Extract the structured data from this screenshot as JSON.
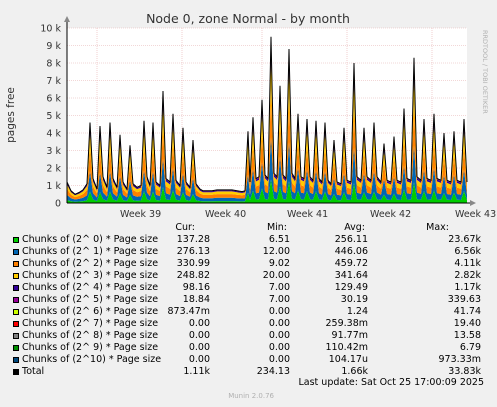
{
  "chart_data": {
    "type": "area",
    "title": "Node 0, zone Normal - by month",
    "ylabel": "pages free",
    "ylim": [
      0,
      10000
    ],
    "yticks": [
      {
        "v": 0,
        "label": "0"
      },
      {
        "v": 1000,
        "label": "1 k"
      },
      {
        "v": 2000,
        "label": "2 k"
      },
      {
        "v": 3000,
        "label": "3 k"
      },
      {
        "v": 4000,
        "label": "4 k"
      },
      {
        "v": 5000,
        "label": "5 k"
      },
      {
        "v": 6000,
        "label": "6 k"
      },
      {
        "v": 7000,
        "label": "7 k"
      },
      {
        "v": 8000,
        "label": "8 k"
      },
      {
        "v": 9000,
        "label": "9 k"
      },
      {
        "v": 10000,
        "label": "10 k"
      }
    ],
    "xticks": [
      "Week 39",
      "Week 40",
      "Week 41",
      "Week 42",
      "Week 43"
    ],
    "watermark": "RRDTOOL / TOBI OETIKER",
    "grid": true,
    "columns": [
      "Cur:",
      "Min:",
      "Avg:",
      "Max:"
    ],
    "series": [
      {
        "name": "Chunks of (2^ 0) * Page size",
        "color": "#00cc00",
        "cur": "137.28",
        "min": "6.51",
        "avg": "256.11",
        "max": "23.67k"
      },
      {
        "name": "Chunks of (2^ 1) * Page size",
        "color": "#0066b3",
        "cur": "276.13",
        "min": "12.00",
        "avg": "446.06",
        "max": "6.56k"
      },
      {
        "name": "Chunks of (2^ 2) * Page size",
        "color": "#ff8000",
        "cur": "330.99",
        "min": "9.02",
        "avg": "459.72",
        "max": "4.11k"
      },
      {
        "name": "Chunks of (2^ 3) * Page size",
        "color": "#ffcc00",
        "cur": "248.82",
        "min": "20.00",
        "avg": "341.64",
        "max": "2.82k"
      },
      {
        "name": "Chunks of (2^ 4) * Page size",
        "color": "#330099",
        "cur": "98.16",
        "min": "7.00",
        "avg": "129.49",
        "max": "1.17k"
      },
      {
        "name": "Chunks of (2^ 5) * Page size",
        "color": "#990099",
        "cur": "18.84",
        "min": "7.00",
        "avg": "30.19",
        "max": "339.63"
      },
      {
        "name": "Chunks of (2^ 6) * Page size",
        "color": "#ccff00",
        "cur": "873.47m",
        "min": "0.00",
        "avg": "1.24",
        "max": "41.74"
      },
      {
        "name": "Chunks of (2^ 7) * Page size",
        "color": "#ff0000",
        "cur": "0.00",
        "min": "0.00",
        "avg": "259.38m",
        "max": "19.40"
      },
      {
        "name": "Chunks of (2^ 8) * Page size",
        "color": "#808080",
        "cur": "0.00",
        "min": "0.00",
        "avg": "91.77m",
        "max": "13.58"
      },
      {
        "name": "Chunks of (2^ 9) * Page size",
        "color": "#008f00",
        "cur": "0.00",
        "min": "0.00",
        "avg": "110.42m",
        "max": "6.79"
      },
      {
        "name": "Chunks of (2^10) * Page size",
        "color": "#00487d",
        "cur": "0.00",
        "min": "0.00",
        "avg": "104.17u",
        "max": "973.33m"
      },
      {
        "name": "Total",
        "color": "#000000",
        "cur": "1.11k",
        "min": "234.13",
        "avg": "1.66k",
        "max": "33.83k"
      }
    ],
    "total_points": [
      [
        0,
        1200
      ],
      [
        0.4,
        700
      ],
      [
        0.8,
        500
      ],
      [
        1.2,
        600
      ],
      [
        1.6,
        750
      ],
      [
        2.0,
        1100
      ],
      [
        2.3,
        4600
      ],
      [
        2.6,
        1400
      ],
      [
        3.0,
        800
      ],
      [
        3.3,
        4400
      ],
      [
        3.6,
        1500
      ],
      [
        4.0,
        900
      ],
      [
        4.3,
        4600
      ],
      [
        4.6,
        1400
      ],
      [
        5.0,
        900
      ],
      [
        5.3,
        3900
      ],
      [
        5.6,
        1200
      ],
      [
        6.0,
        800
      ],
      [
        6.3,
        3300
      ],
      [
        6.6,
        1100
      ],
      [
        7.0,
        900
      ],
      [
        7.4,
        1000
      ],
      [
        7.7,
        4700
      ],
      [
        8.0,
        1500
      ],
      [
        8.3,
        1000
      ],
      [
        8.6,
        4600
      ],
      [
        8.9,
        1200
      ],
      [
        9.3,
        1000
      ],
      [
        9.6,
        6400
      ],
      [
        9.9,
        1400
      ],
      [
        10.3,
        1200
      ],
      [
        10.6,
        5100
      ],
      [
        10.9,
        1300
      ],
      [
        11.3,
        1000
      ],
      [
        11.6,
        4300
      ],
      [
        11.9,
        1200
      ],
      [
        12.3,
        900
      ],
      [
        12.6,
        3600
      ],
      [
        12.9,
        1100
      ],
      [
        13.3,
        800
      ],
      [
        13.6,
        700
      ],
      [
        14.0,
        700
      ],
      [
        14.5,
        700
      ],
      [
        15.0,
        750
      ],
      [
        15.5,
        750
      ],
      [
        16.0,
        750
      ],
      [
        16.5,
        750
      ],
      [
        17.0,
        700
      ],
      [
        17.5,
        650
      ],
      [
        17.8,
        700
      ],
      [
        18.1,
        4100
      ],
      [
        18.3,
        1200
      ],
      [
        18.6,
        4900
      ],
      [
        18.9,
        1400
      ],
      [
        19.2,
        1500
      ],
      [
        19.5,
        5900
      ],
      [
        19.8,
        1600
      ],
      [
        20.1,
        1400
      ],
      [
        20.4,
        9500
      ],
      [
        20.7,
        1700
      ],
      [
        21.0,
        1500
      ],
      [
        21.3,
        6700
      ],
      [
        21.6,
        1600
      ],
      [
        21.9,
        1400
      ],
      [
        22.2,
        8800
      ],
      [
        22.5,
        1700
      ],
      [
        22.8,
        1400
      ],
      [
        23.1,
        5100
      ],
      [
        23.4,
        1500
      ],
      [
        23.7,
        1400
      ],
      [
        24.0,
        4800
      ],
      [
        24.3,
        1500
      ],
      [
        24.6,
        1300
      ],
      [
        24.9,
        4700
      ],
      [
        25.2,
        1400
      ],
      [
        25.5,
        1200
      ],
      [
        25.8,
        4600
      ],
      [
        26.1,
        1300
      ],
      [
        26.4,
        1100
      ],
      [
        26.7,
        3600
      ],
      [
        27.0,
        1200
      ],
      [
        27.4,
        1100
      ],
      [
        27.7,
        4300
      ],
      [
        28.0,
        1300
      ],
      [
        28.4,
        1200
      ],
      [
        28.7,
        8000
      ],
      [
        29.0,
        1500
      ],
      [
        29.4,
        1300
      ],
      [
        29.7,
        4300
      ],
      [
        30.0,
        1500
      ],
      [
        30.4,
        1300
      ],
      [
        30.7,
        4600
      ],
      [
        31.0,
        1500
      ],
      [
        31.4,
        1200
      ],
      [
        31.7,
        3400
      ],
      [
        32.0,
        1300
      ],
      [
        32.4,
        1200
      ],
      [
        32.7,
        3800
      ],
      [
        33.0,
        1300
      ],
      [
        33.4,
        1200
      ],
      [
        33.7,
        5400
      ],
      [
        34.0,
        1400
      ],
      [
        34.4,
        1300
      ],
      [
        34.7,
        8300
      ],
      [
        35.0,
        1500
      ],
      [
        35.4,
        1300
      ],
      [
        35.7,
        4800
      ],
      [
        36.0,
        1400
      ],
      [
        36.4,
        1300
      ],
      [
        36.7,
        5100
      ],
      [
        37.0,
        1400
      ],
      [
        37.4,
        1300
      ],
      [
        37.7,
        4000
      ],
      [
        38.0,
        1300
      ],
      [
        38.4,
        1200
      ],
      [
        38.7,
        4100
      ],
      [
        39.0,
        1300
      ],
      [
        39.4,
        1200
      ],
      [
        39.7,
        4800
      ],
      [
        40.0,
        1200
      ]
    ]
  },
  "legend": {
    "total_label": "Total"
  },
  "footer": {
    "last_update": "Last update: Sat Oct 25 17:00:09 2025",
    "version": "Munin 2.0.76"
  }
}
